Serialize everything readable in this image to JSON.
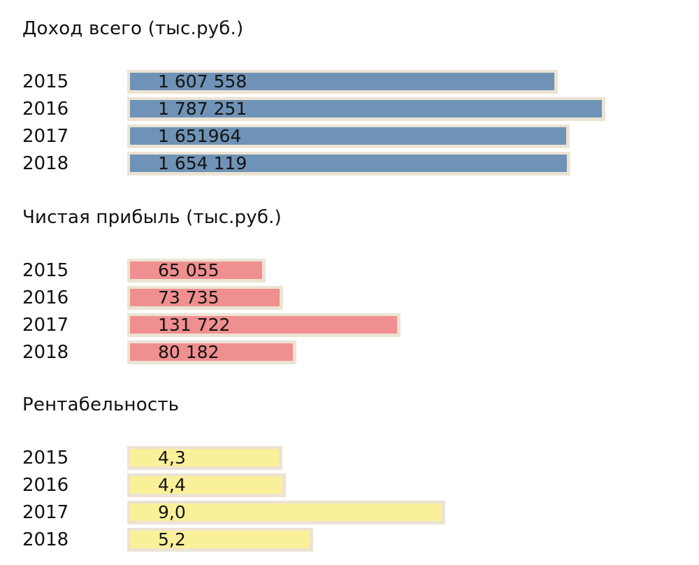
{
  "chart_data": [
    {
      "type": "bar",
      "orientation": "horizontal",
      "title": "Доход всего (тыс.руб.)",
      "categories": [
        "2015",
        "2016",
        "2017",
        "2018"
      ],
      "values": [
        1607558,
        1787251,
        1651964,
        1654119
      ],
      "labels": [
        "1 607 558",
        "1 787 251",
        "1 651964",
        "1 654 119"
      ],
      "color": "#6f93b6",
      "xlim": [
        0,
        1800000
      ]
    },
    {
      "type": "bar",
      "orientation": "horizontal",
      "title": "Чистая прибыль (тыс.руб.)",
      "categories": [
        "2015",
        "2016",
        "2017",
        "2018"
      ],
      "values": [
        65055,
        73735,
        131722,
        80182
      ],
      "labels": [
        "65 055",
        "73 735",
        "131 722",
        "80 182"
      ],
      "color": "#f08f8f",
      "xlim": [
        0,
        150000
      ]
    },
    {
      "type": "bar",
      "orientation": "horizontal",
      "title": "Рентабельность",
      "categories": [
        "2015",
        "2016",
        "2017",
        "2018"
      ],
      "values": [
        4.3,
        4.4,
        9.0,
        5.2
      ],
      "labels": [
        "4,3",
        "4,4",
        "9,0",
        "5,2"
      ],
      "color": "#fbf09a",
      "xlim": [
        0,
        10
      ]
    }
  ]
}
